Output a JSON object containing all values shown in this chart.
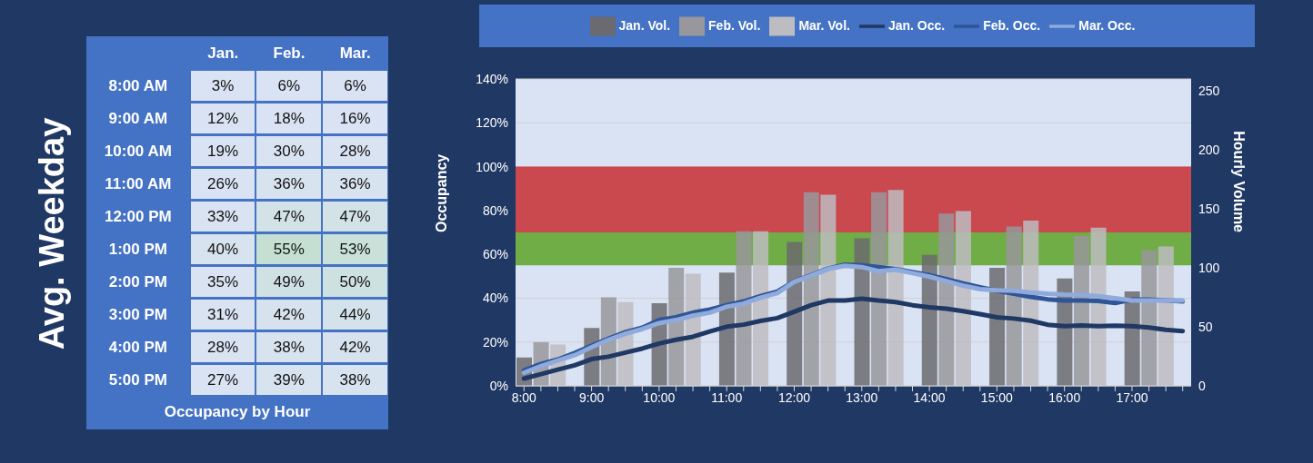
{
  "chart_data": [
    {
      "type": "heatmap",
      "ylabel": "Avg. Weekday",
      "xlabel": "Occupancy by Hour",
      "categories": [
        "Jan.",
        "Feb.",
        "Mar."
      ],
      "y_categories": [
        "8:00 AM",
        "9:00 AM",
        "10:00 AM",
        "11:00 AM",
        "12:00 PM",
        "1:00 PM",
        "2:00 PM",
        "3:00 PM",
        "4:00 PM",
        "5:00 PM"
      ],
      "cells": [
        [
          3,
          6,
          6
        ],
        [
          12,
          18,
          16
        ],
        [
          19,
          30,
          28
        ],
        [
          26,
          36,
          36
        ],
        [
          33,
          47,
          47
        ],
        [
          40,
          55,
          53
        ],
        [
          35,
          49,
          50
        ],
        [
          31,
          42,
          44
        ],
        [
          28,
          38,
          42
        ],
        [
          27,
          39,
          38
        ]
      ],
      "cell_labels": [
        [
          "3%",
          "6%",
          "6%"
        ],
        [
          "12%",
          "18%",
          "16%"
        ],
        [
          "19%",
          "30%",
          "28%"
        ],
        [
          "26%",
          "36%",
          "36%"
        ],
        [
          "33%",
          "47%",
          "47%"
        ],
        [
          "40%",
          "55%",
          "53%"
        ],
        [
          "35%",
          "49%",
          "50%"
        ],
        [
          "31%",
          "42%",
          "44%"
        ],
        [
          "28%",
          "38%",
          "42%"
        ],
        [
          "27%",
          "39%",
          "38%"
        ]
      ]
    },
    {
      "type": "bar",
      "ylabel": "Occupancy",
      "y2label": "Hourly Volume",
      "categories": [
        "8:00",
        null,
        null,
        null,
        "9:00",
        null,
        null,
        null,
        "10:00",
        null,
        null,
        null,
        "11:00",
        null,
        null,
        null,
        "12:00",
        null,
        null,
        null,
        "13:00",
        null,
        null,
        null,
        "14:00",
        null,
        null,
        null,
        "15:00",
        null,
        null,
        null,
        "16:00",
        null,
        null,
        null,
        "17:00",
        null,
        null,
        null
      ],
      "series": [
        {
          "name": "Jan. Vol.",
          "type": "bar",
          "axis": "y2",
          "color": "#6b6a6f",
          "values": [
            24,
            null,
            null,
            null,
            49,
            null,
            null,
            null,
            70,
            null,
            null,
            null,
            96,
            null,
            null,
            null,
            122,
            null,
            null,
            null,
            125,
            null,
            null,
            null,
            111,
            null,
            null,
            null,
            100,
            null,
            null,
            null,
            91,
            null,
            null,
            null,
            80,
            null,
            null,
            null
          ]
        },
        {
          "name": "Feb. Vol.",
          "type": "bar",
          "axis": "y2",
          "color": "#98979b",
          "values": [
            null,
            37,
            null,
            null,
            null,
            75,
            null,
            null,
            null,
            100,
            null,
            null,
            null,
            131,
            null,
            null,
            null,
            164,
            null,
            null,
            null,
            164,
            null,
            null,
            null,
            146,
            null,
            null,
            null,
            135,
            null,
            null,
            null,
            127,
            null,
            null,
            null,
            115,
            null,
            null
          ]
        },
        {
          "name": "Mar. Vol.",
          "type": "bar",
          "axis": "y2",
          "color": "#bdbcc0",
          "values": [
            null,
            null,
            35,
            null,
            null,
            null,
            71,
            null,
            null,
            null,
            95,
            null,
            null,
            null,
            131,
            null,
            null,
            null,
            162,
            null,
            null,
            null,
            166,
            null,
            null,
            null,
            148,
            null,
            null,
            null,
            140,
            null,
            null,
            null,
            134,
            null,
            null,
            null,
            118,
            null
          ]
        },
        {
          "name": "Jan. Occ.",
          "type": "line",
          "color": "#1f3864",
          "values": [
            3.3,
            5.3,
            7.4,
            9.4,
            12.2,
            13.3,
            15.2,
            17,
            19.3,
            21,
            22.4,
            24.8,
            27,
            27.9,
            29.6,
            30.9,
            33.8,
            36.8,
            38.9,
            38.9,
            39.8,
            38.9,
            38.2,
            36.8,
            35.8,
            35.2,
            34.1,
            32.7,
            31.3,
            30.7,
            29.7,
            27.9,
            27.2,
            27.5,
            27.2,
            27.4,
            27.2,
            26.6,
            25.6,
            25
          ]
        },
        {
          "name": "Feb. Occ.",
          "type": "line",
          "color": "#2f5597",
          "values": [
            7,
            10,
            12,
            15,
            18.3,
            21.5,
            24.5,
            26.5,
            30,
            31.3,
            33.4,
            34.8,
            36.8,
            38.5,
            40.9,
            43,
            47.7,
            50.5,
            53.5,
            55.3,
            55,
            54.2,
            53.2,
            51.9,
            50.5,
            48.7,
            46.7,
            45,
            43.4,
            42,
            40.6,
            39.5,
            38.9,
            38.9,
            38.7,
            37.8,
            39.3,
            39.3,
            39,
            38.5
          ]
        },
        {
          "name": "Mar. Occ.",
          "type": "line",
          "color": "#8faadc",
          "values": [
            6,
            9,
            11.5,
            14,
            17.6,
            21,
            23.8,
            25.9,
            28.6,
            30,
            32,
            33.4,
            36.1,
            37.5,
            40.2,
            42.3,
            47.5,
            50.3,
            53.3,
            54.8,
            54.2,
            52.3,
            53,
            51.4,
            49.8,
            47.8,
            45.7,
            44.1,
            43.6,
            43.4,
            42.6,
            42,
            41.6,
            41.5,
            40.9,
            40,
            38.9,
            38.9,
            39,
            38.9
          ]
        }
      ],
      "ylim": [
        0,
        140
      ],
      "yticks": [
        {
          "value": 0,
          "label": "0%"
        },
        {
          "value": 20,
          "label": "20%"
        },
        {
          "value": 40,
          "label": "40%"
        },
        {
          "value": 60,
          "label": "60%"
        },
        {
          "value": 80,
          "label": "80%"
        },
        {
          "value": 100,
          "label": "100%"
        },
        {
          "value": 120,
          "label": "120%"
        },
        {
          "value": 140,
          "label": "140%"
        }
      ],
      "y2lim": [
        0,
        260
      ],
      "y2ticks": [
        0,
        50,
        100,
        150,
        200,
        250
      ],
      "bands": [
        {
          "axis": "y",
          "from": 70,
          "to": 100,
          "color": "#c9494f"
        },
        {
          "axis": "y",
          "from": 55,
          "to": 70,
          "color": "#70ad47"
        }
      ],
      "grid": "y",
      "legend": "top",
      "marker": "none",
      "line_style": "solid"
    }
  ]
}
